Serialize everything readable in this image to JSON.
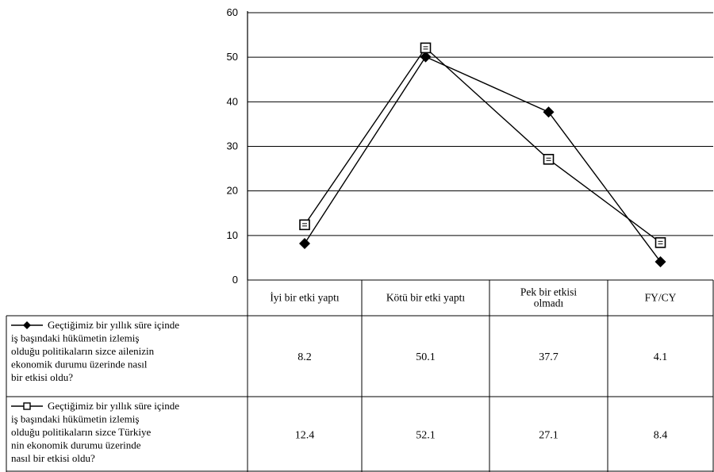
{
  "chart_data": {
    "type": "line",
    "ylim": [
      0,
      60
    ],
    "yticks": [
      "0",
      "10",
      "20",
      "30",
      "40",
      "50",
      "60"
    ],
    "grid": true,
    "legend": "left-table",
    "categories": [
      [
        "İyi bir etki yaptı"
      ],
      [
        "Kötü bir etki yaptı"
      ],
      [
        "Pek bir etkisi",
        "olmadı"
      ],
      [
        "FY/CY"
      ]
    ],
    "series": [
      {
        "name_lines": [
          "Geçtiğimiz bir yıllık süre içinde",
          "iş başındaki hükümetin izlemiş",
          "olduğu politikaların sizce ailenizin",
          "ekonomik durumu üzerinde nasıl",
          "bir etkisi oldu?"
        ],
        "values": [
          8.2,
          50.1,
          37.7,
          4.1
        ],
        "labels": [
          "8.2",
          "50.1",
          "37.7",
          "4.1"
        ],
        "marker": "diamond",
        "color": "#000000"
      },
      {
        "name_lines": [
          "Geçtiğimiz bir yıllık süre içinde",
          "iş başındaki hükümetin izlemiş",
          "olduğu politikaların sizce Türkiye",
          "nin ekonomik durumu üzerinde",
          "nasıl bir etkisi oldu?"
        ],
        "values": [
          12.4,
          52.1,
          27.1,
          8.4
        ],
        "labels": [
          "12.4",
          "52.1",
          "27.1",
          "8.4"
        ],
        "marker": "square",
        "color": "#000000"
      }
    ]
  }
}
